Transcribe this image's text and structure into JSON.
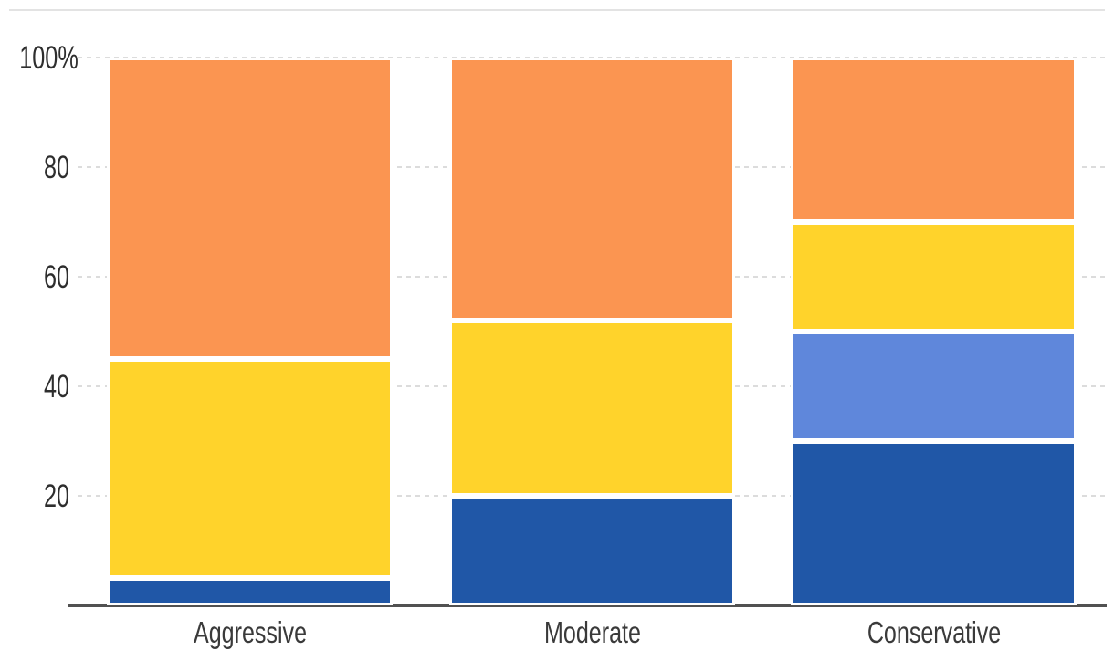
{
  "chart_data": {
    "type": "bar",
    "stacked": true,
    "title": "",
    "categories": [
      "Aggressive",
      "Moderate",
      "Conservative"
    ],
    "series": [
      {
        "name": "dark-blue",
        "color": "#2057a7",
        "values": [
          5,
          20,
          30
        ]
      },
      {
        "name": "light-blue",
        "color": "#5f87db",
        "values": [
          0,
          0,
          20
        ]
      },
      {
        "name": "yellow",
        "color": "#ffd32b",
        "values": [
          40,
          32,
          20
        ]
      },
      {
        "name": "orange",
        "color": "#fb9551",
        "values": [
          55,
          48,
          30
        ]
      }
    ],
    "xlabel": "",
    "ylabel": "",
    "ylim": [
      0,
      100
    ],
    "yticks": [
      20,
      40,
      60,
      80,
      100
    ],
    "ytick_labels": [
      "20",
      "40",
      "60",
      "80",
      "100%"
    ],
    "grid": "dashed-horizontal",
    "legend": "none",
    "colors": {
      "gridline": "#dcdcdc",
      "axis_line": "#515151",
      "tick_label": "#2e2e2e",
      "category_label": "#3a3a3a",
      "segment_border": "#ffffff",
      "top_rule": "#e3e3e3"
    }
  }
}
